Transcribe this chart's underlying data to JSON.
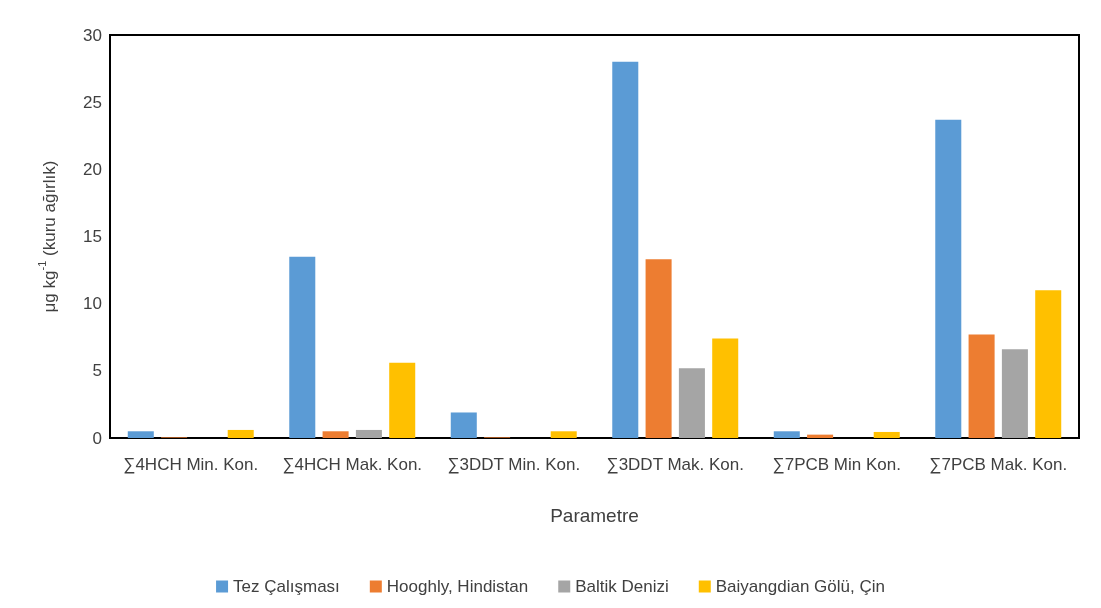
{
  "chart_data": {
    "type": "bar",
    "xlabel": "Parametre",
    "ylabel": "μg kg$^{-1}$ (kuru ağırlık)",
    "categories": [
      "∑4HCH Min. Kon.",
      "∑4HCH Mak. Kon.",
      "∑3DDT Min. Kon.",
      "∑3DDT Mak. Kon.",
      "∑7PCB Min Kon.",
      "∑7PCB Mak. Kon."
    ],
    "series": [
      {
        "name": "Tez Çalışması",
        "color": "#5b9bd5",
        "values": [
          0.5,
          13.5,
          1.9,
          28,
          0.5,
          23.7
        ]
      },
      {
        "name": "Hooghly, Hindistan",
        "color": "#ed7d31",
        "values": [
          0.05,
          0.5,
          0.05,
          13.3,
          0.25,
          7.7
        ]
      },
      {
        "name": "Baltik Denizi",
        "color": "#a5a5a5",
        "values": [
          0,
          0.6,
          null,
          5.2,
          0,
          6.6
        ]
      },
      {
        "name": "Baiyangdian Gölü, Çin",
        "color": "#ffc000",
        "values": [
          0.6,
          5.6,
          0.5,
          7.4,
          0.45,
          11.0
        ]
      }
    ],
    "ylim": [
      0,
      30
    ],
    "yticks": [
      0,
      5,
      10,
      15,
      20,
      25,
      30
    ],
    "grid": false,
    "legend": "bottom"
  }
}
